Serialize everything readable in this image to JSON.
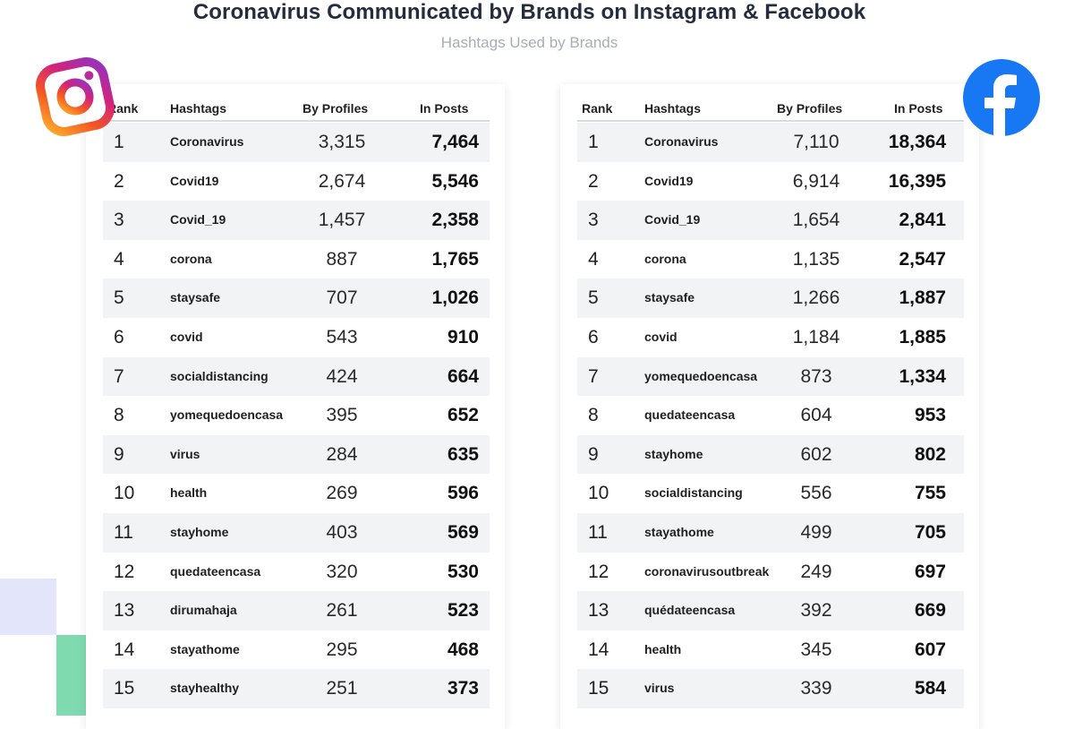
{
  "title": "Coronavirus Communicated by Brands on Instagram & Facebook",
  "subtitle": "Hashtags Used by Brands",
  "colors": {
    "title": "#242c3e",
    "subtitle": "#a7adb7",
    "row_stripe": "#f2f3f5",
    "facebook_blue": "#1877f2",
    "deco_lavender": "#e3e6fb",
    "deco_mint": "#7fdab0"
  },
  "icons": {
    "left": "instagram-logo",
    "right": "facebook-logo"
  },
  "columns": {
    "rank": "Rank",
    "hashtags": "Hashtags",
    "profiles": "By Profiles",
    "posts": "In Posts"
  },
  "chart_data": [
    {
      "type": "table",
      "platform": "Instagram",
      "columns": [
        "Rank",
        "Hashtags",
        "By Profiles",
        "In Posts"
      ],
      "rows": [
        {
          "rank": "1",
          "hashtag": "Coronavirus",
          "profiles": "3,315",
          "posts": "7,464"
        },
        {
          "rank": "2",
          "hashtag": "Covid19",
          "profiles": "2,674",
          "posts": "5,546"
        },
        {
          "rank": "3",
          "hashtag": "Covid_19",
          "profiles": "1,457",
          "posts": "2,358"
        },
        {
          "rank": "4",
          "hashtag": "corona",
          "profiles": "887",
          "posts": "1,765"
        },
        {
          "rank": "5",
          "hashtag": "staysafe",
          "profiles": "707",
          "posts": "1,026"
        },
        {
          "rank": "6",
          "hashtag": "covid",
          "profiles": "543",
          "posts": "910"
        },
        {
          "rank": "7",
          "hashtag": "socialdistancing",
          "profiles": "424",
          "posts": "664"
        },
        {
          "rank": "8",
          "hashtag": "yomequedoencasa",
          "profiles": "395",
          "posts": "652"
        },
        {
          "rank": "9",
          "hashtag": "virus",
          "profiles": "284",
          "posts": "635"
        },
        {
          "rank": "10",
          "hashtag": "health",
          "profiles": "269",
          "posts": "596"
        },
        {
          "rank": "11",
          "hashtag": "stayhome",
          "profiles": "403",
          "posts": "569"
        },
        {
          "rank": "12",
          "hashtag": "quedateencasa",
          "profiles": "320",
          "posts": "530"
        },
        {
          "rank": "13",
          "hashtag": "dirumahaja",
          "profiles": "261",
          "posts": "523"
        },
        {
          "rank": "14",
          "hashtag": "stayathome",
          "profiles": "295",
          "posts": "468"
        },
        {
          "rank": "15",
          "hashtag": "stayhealthy",
          "profiles": "251",
          "posts": "373"
        }
      ]
    },
    {
      "type": "table",
      "platform": "Facebook",
      "columns": [
        "Rank",
        "Hashtags",
        "By Profiles",
        "In Posts"
      ],
      "rows": [
        {
          "rank": "1",
          "hashtag": "Coronavirus",
          "profiles": "7,110",
          "posts": "18,364"
        },
        {
          "rank": "2",
          "hashtag": "Covid19",
          "profiles": "6,914",
          "posts": "16,395"
        },
        {
          "rank": "3",
          "hashtag": "Covid_19",
          "profiles": "1,654",
          "posts": "2,841"
        },
        {
          "rank": "4",
          "hashtag": "corona",
          "profiles": "1,135",
          "posts": "2,547"
        },
        {
          "rank": "5",
          "hashtag": "staysafe",
          "profiles": "1,266",
          "posts": "1,887"
        },
        {
          "rank": "6",
          "hashtag": "covid",
          "profiles": "1,184",
          "posts": "1,885"
        },
        {
          "rank": "7",
          "hashtag": "yomequedoencasa",
          "profiles": "873",
          "posts": "1,334"
        },
        {
          "rank": "8",
          "hashtag": "quedateencasa",
          "profiles": "604",
          "posts": "953"
        },
        {
          "rank": "9",
          "hashtag": "stayhome",
          "profiles": "602",
          "posts": "802"
        },
        {
          "rank": "10",
          "hashtag": "socialdistancing",
          "profiles": "556",
          "posts": "755"
        },
        {
          "rank": "11",
          "hashtag": "stayathome",
          "profiles": "499",
          "posts": "705"
        },
        {
          "rank": "12",
          "hashtag": "coronavirusoutbreak",
          "profiles": "249",
          "posts": "697"
        },
        {
          "rank": "13",
          "hashtag": "quédateencasa",
          "profiles": "392",
          "posts": "669"
        },
        {
          "rank": "14",
          "hashtag": "health",
          "profiles": "345",
          "posts": "607"
        },
        {
          "rank": "15",
          "hashtag": "virus",
          "profiles": "339",
          "posts": "584"
        }
      ]
    }
  ]
}
